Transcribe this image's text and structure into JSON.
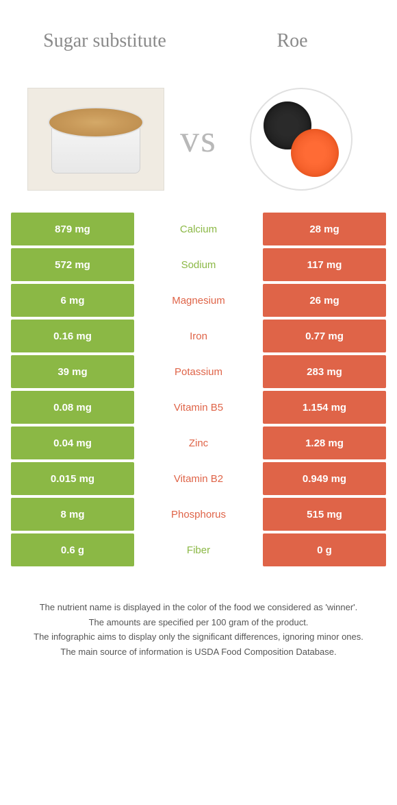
{
  "header": {
    "left_title": "Sugar substitute",
    "right_title": "Roe",
    "vs": "vs"
  },
  "colors": {
    "left": "#8bb845",
    "right": "#df6448",
    "title_text": "#8a8a8a",
    "vs_text": "#b8b8b8"
  },
  "rows": [
    {
      "left": "879 mg",
      "nutrient": "Calcium",
      "right": "28 mg",
      "winner": "left"
    },
    {
      "left": "572 mg",
      "nutrient": "Sodium",
      "right": "117 mg",
      "winner": "left"
    },
    {
      "left": "6 mg",
      "nutrient": "Magnesium",
      "right": "26 mg",
      "winner": "right"
    },
    {
      "left": "0.16 mg",
      "nutrient": "Iron",
      "right": "0.77 mg",
      "winner": "right"
    },
    {
      "left": "39 mg",
      "nutrient": "Potassium",
      "right": "283 mg",
      "winner": "right"
    },
    {
      "left": "0.08 mg",
      "nutrient": "Vitamin B5",
      "right": "1.154 mg",
      "winner": "right"
    },
    {
      "left": "0.04 mg",
      "nutrient": "Zinc",
      "right": "1.28 mg",
      "winner": "right"
    },
    {
      "left": "0.015 mg",
      "nutrient": "Vitamin B2",
      "right": "0.949 mg",
      "winner": "right"
    },
    {
      "left": "8 mg",
      "nutrient": "Phosphorus",
      "right": "515 mg",
      "winner": "right"
    },
    {
      "left": "0.6 g",
      "nutrient": "Fiber",
      "right": "0 g",
      "winner": "left"
    }
  ],
  "footer": {
    "line1": "The nutrient name is displayed in the color of the food we considered as 'winner'.",
    "line2": "The amounts are specified per 100 gram of the product.",
    "line3": "The infographic aims to display only the significant differences, ignoring minor ones.",
    "line4": "The main source of information is USDA Food Composition Database."
  }
}
